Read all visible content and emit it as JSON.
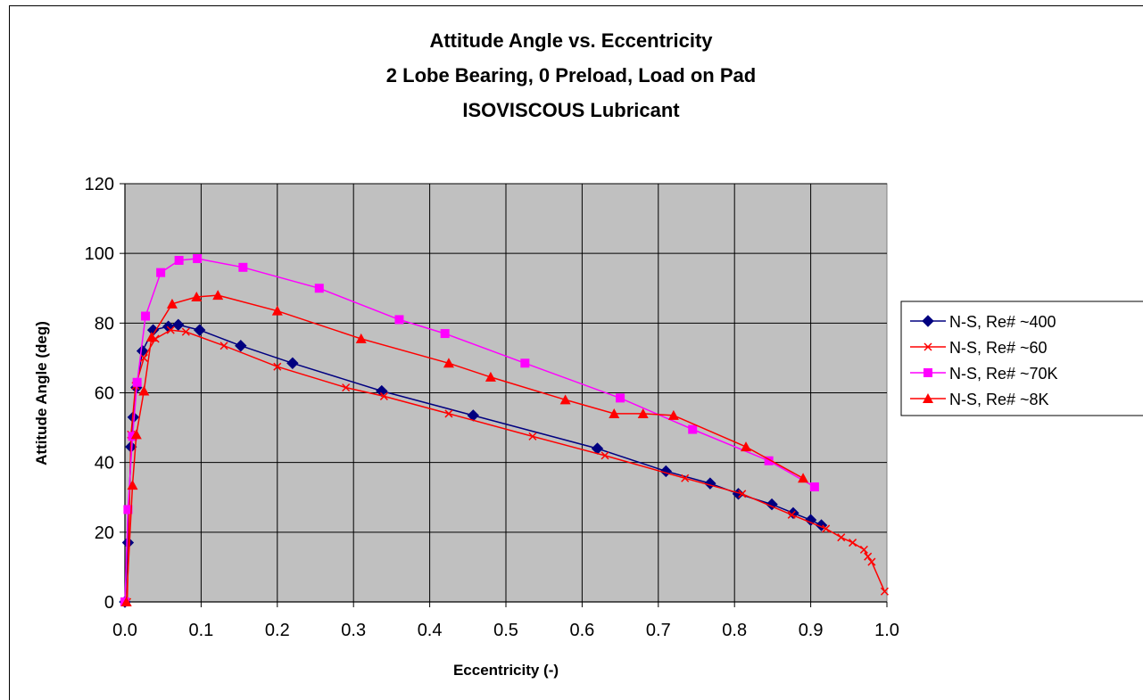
{
  "chart_data": {
    "type": "scatter",
    "title": [
      "Attitude Angle vs. Eccentricity",
      "2 Lobe Bearing, 0 Preload, Load on Pad",
      "ISOVISCOUS Lubricant"
    ],
    "xlabel": "Eccentricity (-)",
    "ylabel": "Attitude Angle (deg)",
    "xlim": [
      0,
      1
    ],
    "ylim": [
      0,
      120
    ],
    "x_ticks": [
      "0.0",
      "0.1",
      "0.2",
      "0.3",
      "0.4",
      "0.5",
      "0.6",
      "0.7",
      "0.8",
      "0.9",
      "1.0"
    ],
    "y_ticks": [
      "0",
      "20",
      "40",
      "60",
      "80",
      "100",
      "120"
    ],
    "grid": true,
    "legend_position": "right",
    "series": [
      {
        "name": "N-S, Re# ~400",
        "color": "#000080",
        "marker": "diamond",
        "x": [
          0.0,
          0.004,
          0.008,
          0.011,
          0.015,
          0.023,
          0.037,
          0.057,
          0.07,
          0.098,
          0.152,
          0.22,
          0.337,
          0.457,
          0.62,
          0.71,
          0.768,
          0.805,
          0.849,
          0.877,
          0.9,
          0.914
        ],
        "y": [
          0,
          17,
          44.5,
          53,
          61.5,
          72,
          78,
          79,
          79.5,
          78,
          73.5,
          68.5,
          60.5,
          53.5,
          44,
          37.5,
          34,
          31,
          28,
          25.5,
          23.5,
          22
        ]
      },
      {
        "name": "N-S, Re# ~60",
        "color": "#ff0000",
        "marker": "x",
        "x": [
          0.003,
          0.008,
          0.014,
          0.025,
          0.04,
          0.06,
          0.08,
          0.13,
          0.2,
          0.29,
          0.34,
          0.425,
          0.535,
          0.63,
          0.735,
          0.81,
          0.875,
          0.92,
          0.94,
          0.955,
          0.97,
          0.975,
          0.98,
          0.997
        ],
        "y": [
          0,
          48,
          62,
          70,
          75.5,
          78,
          77.5,
          73.5,
          67.5,
          61.5,
          59,
          54,
          47.5,
          42,
          35.5,
          31,
          25,
          21,
          18.5,
          17,
          15,
          13,
          11.5,
          3
        ]
      },
      {
        "name": "N-S, Re# ~70K",
        "color": "#ff00ff",
        "marker": "square",
        "x": [
          0.0,
          0.004,
          0.01,
          0.016,
          0.027,
          0.047,
          0.071,
          0.095,
          0.155,
          0.255,
          0.36,
          0.42,
          0.525,
          0.65,
          0.745,
          0.845,
          0.905
        ],
        "y": [
          0,
          26.5,
          47.5,
          63,
          82,
          94.5,
          98,
          98.5,
          96,
          90,
          81,
          77,
          68.5,
          58.5,
          49.5,
          40.5,
          33
        ]
      },
      {
        "name": "N-S, Re# ~8K",
        "color": "#ff0000",
        "marker": "triangle",
        "x": [
          0.002,
          0.01,
          0.015,
          0.025,
          0.035,
          0.062,
          0.094,
          0.122,
          0.2,
          0.31,
          0.425,
          0.48,
          0.578,
          0.642,
          0.68,
          0.72,
          0.815,
          0.89
        ],
        "y": [
          0,
          33.5,
          48,
          60.5,
          76,
          85.5,
          87.5,
          88,
          83.5,
          75.5,
          68.5,
          64.5,
          58,
          54,
          54,
          53.5,
          44.5,
          35.5
        ]
      }
    ]
  }
}
